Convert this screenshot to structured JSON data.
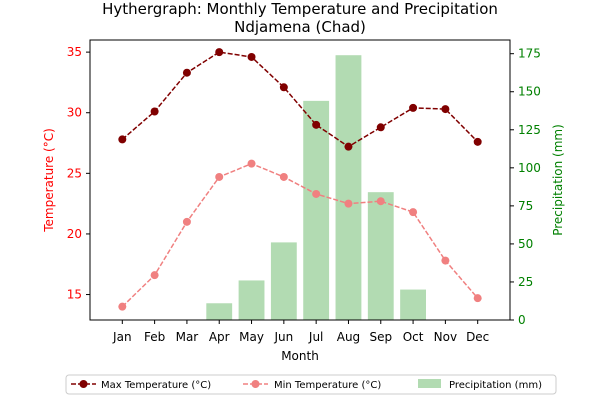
{
  "chart_data": {
    "type": "bar+line",
    "title_lines": [
      "Hythergraph: Monthly Temperature and Precipitation",
      "Ndjamena (Chad)"
    ],
    "xlabel": "Month",
    "ylabel_left": "Temperature (°C)",
    "ylabel_right": "Precipitation (mm)",
    "categories": [
      "Jan",
      "Feb",
      "Mar",
      "Apr",
      "May",
      "Jun",
      "Jul",
      "Aug",
      "Sep",
      "Oct",
      "Nov",
      "Dec"
    ],
    "ylim_left": [
      12.9,
      36
    ],
    "yticks_left": [
      15,
      20,
      25,
      30,
      35
    ],
    "ylim_right": [
      0,
      184
    ],
    "yticks_right": [
      0,
      25,
      50,
      75,
      100,
      125,
      150,
      175
    ],
    "grid": false,
    "legend_position": "bottom",
    "colors": {
      "left_axis": "#ff0000",
      "right_axis": "#008000",
      "max_temp": "#800000",
      "min_temp": "#f08080",
      "precip": "#b2dbb2"
    },
    "series": [
      {
        "name": "Max Temperature (°C)",
        "kind": "line",
        "axis": "left",
        "values": [
          27.8,
          30.1,
          33.3,
          35.0,
          34.6,
          32.1,
          29.0,
          27.2,
          28.8,
          30.4,
          30.3,
          27.6
        ]
      },
      {
        "name": "Min Temperature (°C)",
        "kind": "line",
        "axis": "left",
        "values": [
          14.0,
          16.6,
          21.0,
          24.7,
          25.8,
          24.7,
          23.3,
          22.5,
          22.7,
          21.8,
          17.8,
          14.7
        ]
      },
      {
        "name": "Precipitation (mm)",
        "kind": "bar",
        "axis": "right",
        "values": [
          0,
          0,
          0,
          11,
          26,
          51,
          144,
          174,
          84,
          20,
          0,
          0
        ]
      }
    ]
  }
}
